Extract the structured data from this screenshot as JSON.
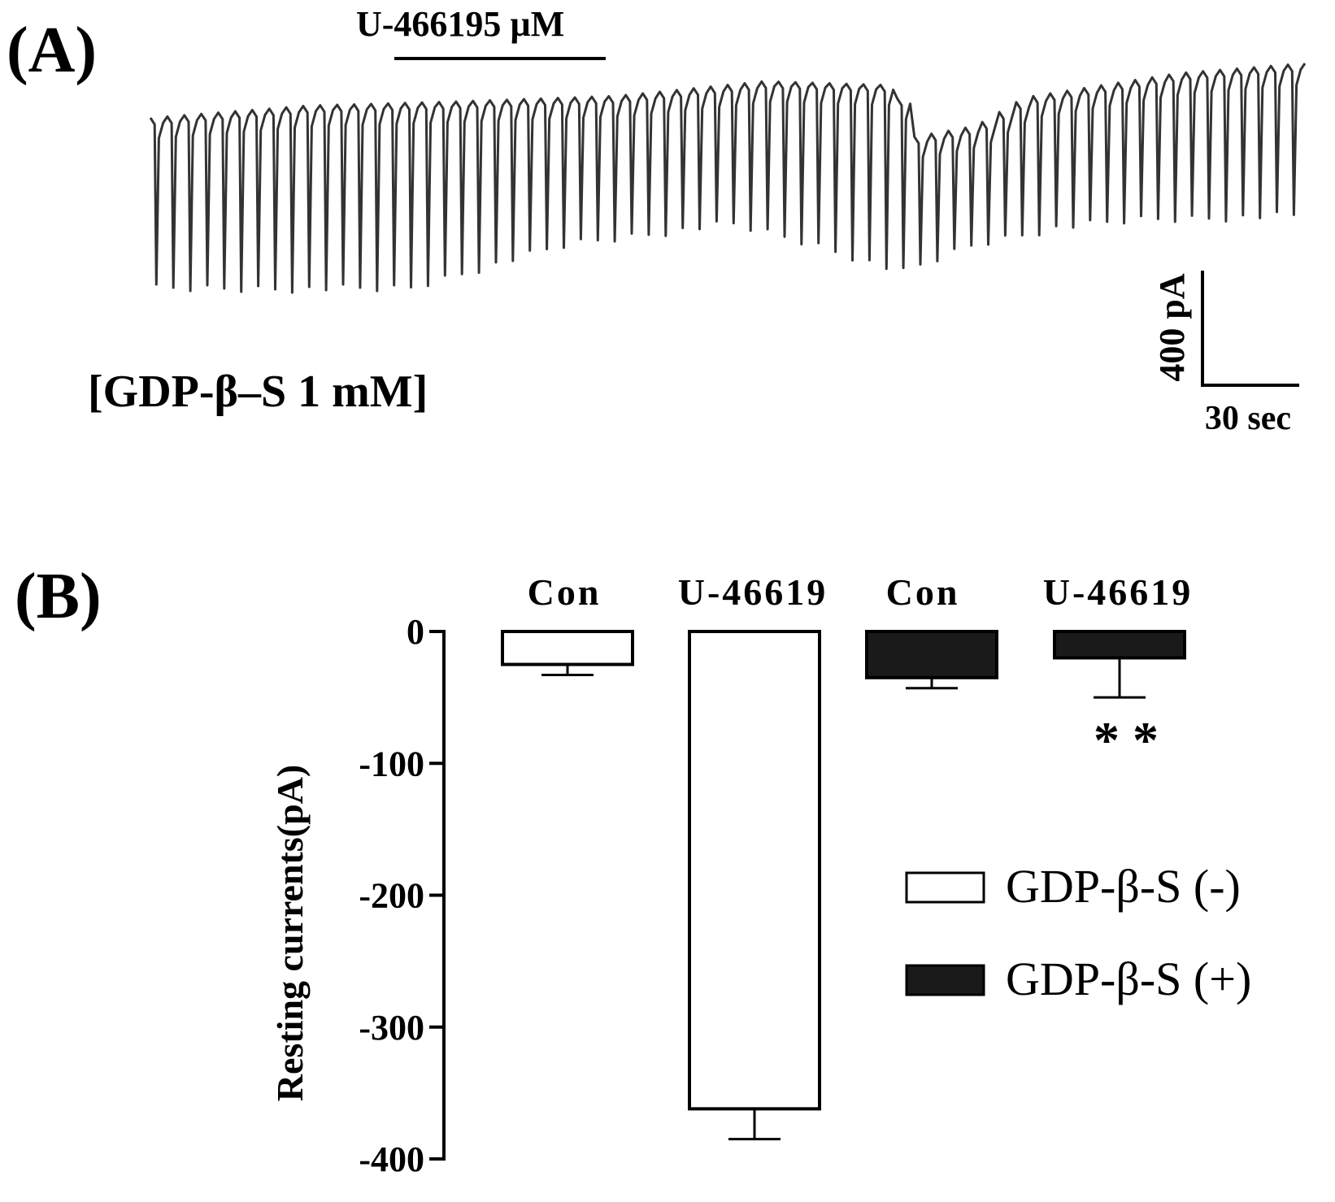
{
  "panel_a": {
    "label": "(A)",
    "drug_label": "U-466195 µM",
    "condition_label": "[GDP-β–S 1 mM]",
    "scale_y_label": "400 pA",
    "scale_x_label": "30 sec",
    "trace_color": "#333333"
  },
  "panel_b": {
    "label": "(B)"
  },
  "chart_data": [
    {
      "type": "line",
      "description_role": "panel-A current trace",
      "title": "",
      "xlabel": "",
      "ylabel": "",
      "annotations": [
        "U-466195 µM",
        "[GDP-β–S 1 mM]"
      ],
      "scale_bars": {
        "current": "400 pA",
        "time": "30 sec"
      },
      "spike_count": 68,
      "grid": false
    },
    {
      "type": "bar",
      "title": "",
      "xlabel": "",
      "ylabel": "Resting currents(pA)",
      "categories": [
        "Con",
        "U-46619",
        "Con",
        "U-46619"
      ],
      "values": [
        -25,
        -362,
        -35,
        -20
      ],
      "errors": [
        8,
        23,
        8,
        30
      ],
      "series_membership": [
        "GDP-β-S (-)",
        "GDP-β-S (-)",
        "GDP-β-S (+)",
        "GDP-β-S (+)"
      ],
      "ylim": [
        -400,
        0
      ],
      "yticks": [
        0,
        -100,
        -200,
        -300,
        -400
      ],
      "ytick_labels": [
        "0",
        "-100",
        "-200",
        "-300",
        "-400"
      ],
      "significance": {
        "bar_index": 3,
        "label": "* *"
      },
      "legend": {
        "position": "right",
        "entries": [
          {
            "name": "GDP-β-S (-)",
            "fill": "#ffffff"
          },
          {
            "name": "GDP-β-S (+)",
            "fill": "#1a1a1a"
          }
        ]
      },
      "grid": false
    }
  ]
}
